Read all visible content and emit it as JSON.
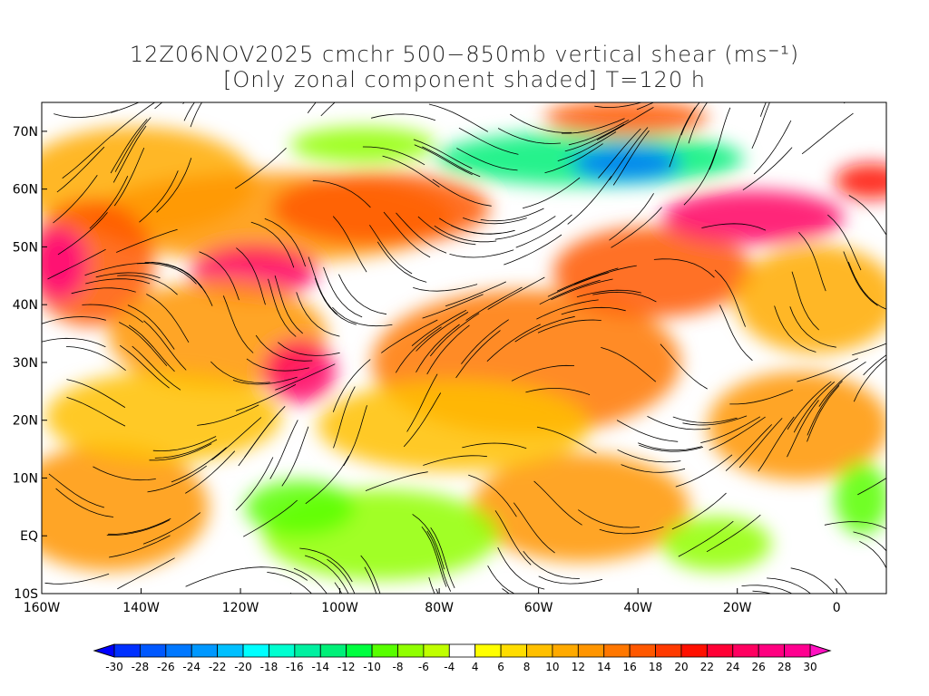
{
  "title": {
    "line1": "12Z06NOV2025 cmchr 500−850mb vertical shear (ms⁻¹)",
    "line2": "[Only zonal component shaded] T=120 h"
  },
  "axes": {
    "x_ticks": [
      {
        "lon": -160,
        "label": "160W"
      },
      {
        "lon": -140,
        "label": "140W"
      },
      {
        "lon": -120,
        "label": "120W"
      },
      {
        "lon": -100,
        "label": "100W"
      },
      {
        "lon": -80,
        "label": "80W"
      },
      {
        "lon": -60,
        "label": "60W"
      },
      {
        "lon": -40,
        "label": "40W"
      },
      {
        "lon": -20,
        "label": "20W"
      },
      {
        "lon": 0,
        "label": "0"
      }
    ],
    "y_ticks": [
      {
        "lat": 70,
        "label": "70N"
      },
      {
        "lat": 60,
        "label": "60N"
      },
      {
        "lat": 50,
        "label": "50N"
      },
      {
        "lat": 40,
        "label": "40N"
      },
      {
        "lat": 30,
        "label": "30N"
      },
      {
        "lat": 20,
        "label": "20N"
      },
      {
        "lat": 10,
        "label": "10N"
      },
      {
        "lat": 0,
        "label": "EQ"
      },
      {
        "lat": -10,
        "label": "10S"
      }
    ],
    "lon_range": [
      -160,
      10
    ],
    "lat_range": [
      -10,
      75
    ]
  },
  "colorbar": {
    "labels": [
      "-30",
      "-28",
      "-26",
      "-24",
      "-22",
      "-20",
      "-18",
      "-16",
      "-14",
      "-12",
      "-10",
      "-8",
      "-6",
      "-4",
      "4",
      "6",
      "8",
      "10",
      "12",
      "14",
      "16",
      "18",
      "20",
      "22",
      "24",
      "26",
      "28",
      "30"
    ],
    "colors": [
      "#0030ff",
      "#0058ff",
      "#0078ff",
      "#0098ff",
      "#00c0ff",
      "#00ffff",
      "#00ffd0",
      "#00f0a0",
      "#00f078",
      "#00ff40",
      "#58ff00",
      "#90ff00",
      "#c0ff00",
      "#ffffff",
      "#ffff00",
      "#ffdd00",
      "#ffc000",
      "#ffaa00",
      "#ff9500",
      "#ff7700",
      "#ff5800",
      "#ff3a00",
      "#ff1000",
      "#ff0035",
      "#ff0060",
      "#ff0080",
      "#ff0090"
    ],
    "low_color": "#0000ff",
    "high_color": "#ff10c0"
  }
}
